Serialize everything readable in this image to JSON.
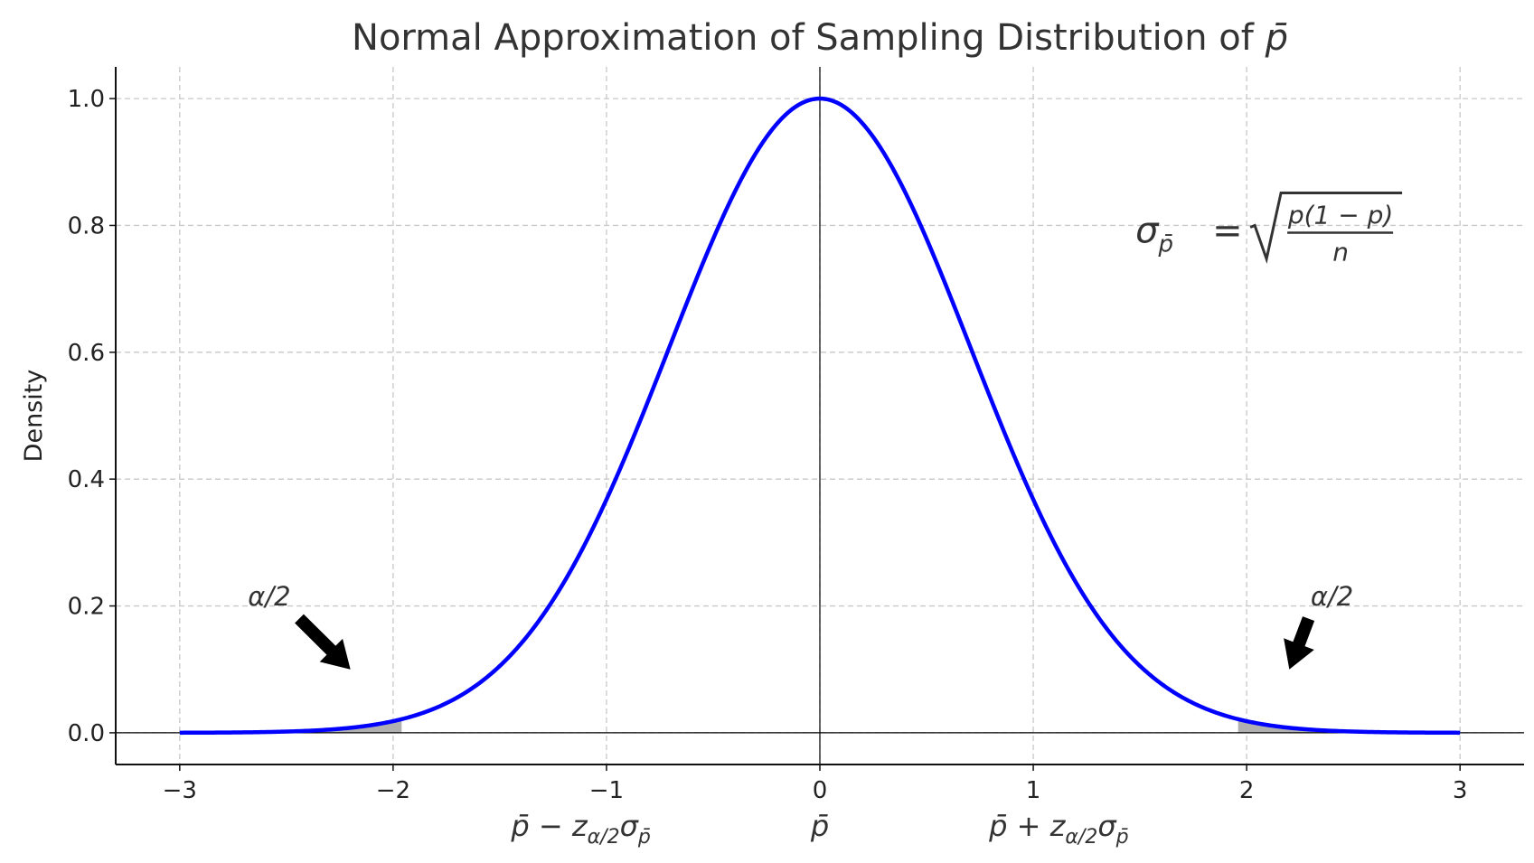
{
  "chart_data": {
    "type": "line",
    "title": "Normal Approximation of Sampling Distribution of ",
    "title_symbol": "p̄",
    "xlabel": "",
    "ylabel": "Density",
    "xlim": [
      -3.3,
      3.3
    ],
    "ylim": [
      -0.05,
      1.05
    ],
    "grid": true,
    "x_ticks": [
      -3,
      -2,
      -1,
      0,
      1,
      2,
      3
    ],
    "x_tick_labels": [
      "−3",
      "−2",
      "−1",
      "0",
      "1",
      "2",
      "3"
    ],
    "y_ticks": [
      0.0,
      0.2,
      0.4,
      0.6,
      0.8,
      1.0
    ],
    "y_tick_labels": [
      "0.0",
      "0.2",
      "0.4",
      "0.6",
      "0.8",
      "1.0"
    ],
    "series": [
      {
        "function": "exp(-x^2)",
        "x_range": [
          -3,
          3
        ],
        "color": "#0000ff"
      }
    ],
    "shaded_regions": [
      {
        "x_range": [
          -3,
          -1.96
        ],
        "color": "#b0b0b0"
      },
      {
        "x_range": [
          1.96,
          3
        ],
        "color": "#b0b0b0"
      }
    ],
    "reference_lines": {
      "vertical_x": 0,
      "horizontal_y": 0,
      "color": "#000000"
    },
    "critical_labels": [
      {
        "x": -1.12,
        "base": "p̄",
        "op": " − z",
        "sub": "α/2",
        "sigma": "σ",
        "sigma_sub": "p̄"
      },
      {
        "x": 0,
        "base": "p̄",
        "op": "",
        "sub": "",
        "sigma": "",
        "sigma_sub": ""
      },
      {
        "x": 1.12,
        "base": "p̄",
        "op": " + z",
        "sub": "α/2",
        "sigma": "σ",
        "sigma_sub": "p̄"
      }
    ],
    "annotations": [
      {
        "text": "α/2",
        "text_xy": [
          -2.58,
          0.215
        ],
        "arrow_from": [
          -2.44,
          0.18
        ],
        "arrow_to": [
          -2.2,
          0.1
        ]
      },
      {
        "text": "α/2",
        "text_xy": [
          2.4,
          0.215
        ],
        "arrow_from": [
          2.29,
          0.18
        ],
        "arrow_to": [
          2.2,
          0.1
        ]
      }
    ],
    "formula": {
      "lhs": "σ",
      "lhs_sub": "p̄",
      "eq": "=",
      "numerator": "p(1 − p)",
      "denominator": "n",
      "position": [
        1.5,
        0.78
      ]
    }
  }
}
